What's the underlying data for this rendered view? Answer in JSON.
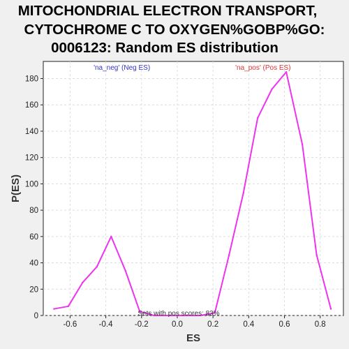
{
  "chart_data": {
    "type": "line",
    "title_lines": [
      "MITOCHONDRIAL ELECTRON TRANSPORT,",
      "CYTOCHROME C TO OXYGEN%GOBP%GO:",
      "0006123: Random ES distribution"
    ],
    "xlabel": "ES",
    "ylabel": "P(ES)",
    "xlim": [
      -0.75,
      0.93
    ],
    "ylim": [
      0,
      193
    ],
    "xticks": [
      -0.6,
      -0.4,
      -0.2,
      0.0,
      0.2,
      0.4,
      0.6,
      0.8
    ],
    "xtick_labels": [
      "-0.6",
      "-0.4",
      "-0.2",
      "0.0",
      "0.2",
      "0.4",
      "0.6",
      "0.8"
    ],
    "yticks": [
      0,
      20,
      40,
      60,
      80,
      100,
      120,
      140,
      160,
      180
    ],
    "ytick_labels": [
      "0",
      "20",
      "40",
      "60",
      "80",
      "100",
      "120",
      "140",
      "160",
      "180"
    ],
    "grid": true,
    "series": [
      {
        "color": "#ee33ee",
        "x": [
          -0.69,
          -0.61,
          -0.53,
          -0.45,
          -0.37,
          -0.29,
          -0.21,
          -0.13,
          -0.05,
          0.03,
          0.13,
          0.21,
          0.29,
          0.37,
          0.45,
          0.53,
          0.61,
          0.7,
          0.78,
          0.86
        ],
        "y": [
          5,
          7,
          25,
          37,
          60,
          34,
          3,
          0,
          0,
          0,
          0,
          2,
          46,
          93,
          150,
          172,
          185,
          130,
          46,
          5
        ]
      }
    ],
    "annotations": {
      "neg": {
        "text": "'na_neg' (Neg ES)",
        "color": "#3333cc",
        "x": -0.31
      },
      "pos": {
        "text": "'na_pos' (Pos ES)",
        "color": "#dd3333",
        "x": 0.48
      },
      "footnote": "Sets with pos scores: 83%"
    }
  }
}
